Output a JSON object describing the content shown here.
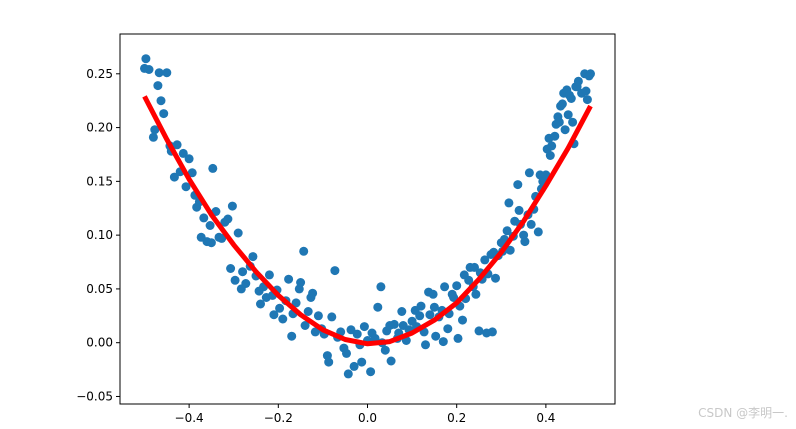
{
  "watermark": "CSDN @李明一.",
  "chart_data": {
    "type": "scatter",
    "title": "",
    "xlabel": "",
    "ylabel": "",
    "xlim": [
      -0.555,
      0.555
    ],
    "ylim": [
      -0.057,
      0.287
    ],
    "grid": false,
    "x_ticks": [
      -0.4,
      -0.2,
      0.0,
      0.2,
      0.4
    ],
    "x_tick_labels": [
      "−0.4",
      "−0.2",
      "0.0",
      "0.2",
      "0.4"
    ],
    "y_ticks": [
      -0.05,
      0.0,
      0.05,
      0.1,
      0.15,
      0.2,
      0.25
    ],
    "y_tick_labels": [
      "−0.05",
      "0.00",
      "0.05",
      "0.10",
      "0.15",
      "0.20",
      "0.25"
    ],
    "colors": {
      "scatter": "#1f77b4",
      "fit": "#ff0000"
    },
    "series": [
      {
        "kind": "scatter",
        "points": [
          [
            -0.5,
            0.255
          ],
          [
            -0.497,
            0.264
          ],
          [
            -0.49,
            0.254
          ],
          [
            -0.48,
            0.191
          ],
          [
            -0.477,
            0.198
          ],
          [
            -0.47,
            0.239
          ],
          [
            -0.467,
            0.251
          ],
          [
            -0.463,
            0.225
          ],
          [
            -0.457,
            0.213
          ],
          [
            -0.45,
            0.251
          ],
          [
            -0.443,
            0.183
          ],
          [
            -0.44,
            0.178
          ],
          [
            -0.433,
            0.154
          ],
          [
            -0.427,
            0.184
          ],
          [
            -0.42,
            0.159
          ],
          [
            -0.413,
            0.176
          ],
          [
            -0.407,
            0.145
          ],
          [
            -0.4,
            0.171
          ],
          [
            -0.393,
            0.158
          ],
          [
            -0.387,
            0.137
          ],
          [
            -0.383,
            0.126
          ],
          [
            -0.377,
            0.131
          ],
          [
            -0.373,
            0.098
          ],
          [
            -0.367,
            0.116
          ],
          [
            -0.36,
            0.094
          ],
          [
            -0.353,
            0.109
          ],
          [
            -0.35,
            0.093
          ],
          [
            -0.347,
            0.162
          ],
          [
            -0.34,
            0.122
          ],
          [
            -0.333,
            0.098
          ],
          [
            -0.327,
            0.097
          ],
          [
            -0.32,
            0.112
          ],
          [
            -0.313,
            0.115
          ],
          [
            -0.307,
            0.069
          ],
          [
            -0.303,
            0.127
          ],
          [
            -0.297,
            0.058
          ],
          [
            -0.29,
            0.102
          ],
          [
            -0.283,
            0.05
          ],
          [
            -0.28,
            0.066
          ],
          [
            -0.273,
            0.055
          ],
          [
            -0.263,
            0.071
          ],
          [
            -0.257,
            0.08
          ],
          [
            -0.25,
            0.062
          ],
          [
            -0.243,
            0.048
          ],
          [
            -0.24,
            0.036
          ],
          [
            -0.233,
            0.052
          ],
          [
            -0.227,
            0.042
          ],
          [
            -0.22,
            0.063
          ],
          [
            -0.213,
            0.044
          ],
          [
            -0.21,
            0.026
          ],
          [
            -0.203,
            0.049
          ],
          [
            -0.197,
            0.032
          ],
          [
            -0.19,
            0.022
          ],
          [
            -0.183,
            0.039
          ],
          [
            -0.177,
            0.059
          ],
          [
            -0.17,
            0.006
          ],
          [
            -0.167,
            0.027
          ],
          [
            -0.16,
            0.037
          ],
          [
            -0.153,
            0.05
          ],
          [
            -0.15,
            0.056
          ],
          [
            -0.143,
            0.085
          ],
          [
            -0.14,
            0.016
          ],
          [
            -0.133,
            0.029
          ],
          [
            -0.127,
            0.042
          ],
          [
            -0.123,
            0.046
          ],
          [
            -0.117,
            0.01
          ],
          [
            -0.11,
            0.025
          ],
          [
            -0.103,
            0.013
          ],
          [
            -0.097,
            0.008
          ],
          [
            -0.09,
            -0.012
          ],
          [
            -0.087,
            -0.018
          ],
          [
            -0.08,
            0.024
          ],
          [
            -0.073,
            0.067
          ],
          [
            -0.067,
            0.005
          ],
          [
            -0.06,
            0.01
          ],
          [
            -0.053,
            -0.005
          ],
          [
            -0.047,
            -0.01
          ],
          [
            -0.043,
            -0.029
          ],
          [
            -0.037,
            0.012
          ],
          [
            -0.03,
            -0.022
          ],
          [
            -0.023,
            0.008
          ],
          [
            -0.017,
            -0.002
          ],
          [
            -0.013,
            -0.018
          ],
          [
            -0.007,
            0.015
          ],
          [
            0.0,
            0.002
          ],
          [
            0.007,
            -0.027
          ],
          [
            0.01,
            0.009
          ],
          [
            0.017,
            0.004
          ],
          [
            0.023,
            0.033
          ],
          [
            0.03,
            0.052
          ],
          [
            0.033,
            0.0
          ],
          [
            0.04,
            -0.007
          ],
          [
            0.043,
            0.011
          ],
          [
            0.05,
            0.016
          ],
          [
            0.053,
            -0.017
          ],
          [
            0.06,
            0.017
          ],
          [
            0.067,
            0.004
          ],
          [
            0.07,
            0.009
          ],
          [
            0.077,
            0.029
          ],
          [
            0.08,
            0.016
          ],
          [
            0.087,
            0.002
          ],
          [
            0.093,
            0.012
          ],
          [
            0.1,
            0.02
          ],
          [
            0.107,
            0.03
          ],
          [
            0.11,
            0.015
          ],
          [
            0.117,
            0.025
          ],
          [
            0.12,
            0.034
          ],
          [
            0.127,
            0.01
          ],
          [
            0.13,
            -0.002
          ],
          [
            0.137,
            0.047
          ],
          [
            0.14,
            0.026
          ],
          [
            0.147,
            0.045
          ],
          [
            0.15,
            0.033
          ],
          [
            0.153,
            0.006
          ],
          [
            0.16,
            0.024
          ],
          [
            0.167,
            0.03
          ],
          [
            0.17,
            0.001
          ],
          [
            0.173,
            0.052
          ],
          [
            0.18,
            0.013
          ],
          [
            0.183,
            0.027
          ],
          [
            0.19,
            0.045
          ],
          [
            0.193,
            0.042
          ],
          [
            0.2,
            0.053
          ],
          [
            0.203,
            0.004
          ],
          [
            0.207,
            0.034
          ],
          [
            0.213,
            0.021
          ],
          [
            0.217,
            0.063
          ],
          [
            0.22,
            0.041
          ],
          [
            0.227,
            0.058
          ],
          [
            0.23,
            0.07
          ],
          [
            0.237,
            0.052
          ],
          [
            0.24,
            0.07
          ],
          [
            0.243,
            0.045
          ],
          [
            0.25,
            0.011
          ],
          [
            0.253,
            0.065
          ],
          [
            0.257,
            0.059
          ],
          [
            0.263,
            0.077
          ],
          [
            0.267,
            0.009
          ],
          [
            0.27,
            0.064
          ],
          [
            0.277,
            0.082
          ],
          [
            0.28,
            0.01
          ],
          [
            0.283,
            0.084
          ],
          [
            0.287,
            0.06
          ],
          [
            0.293,
            0.081
          ],
          [
            0.3,
            0.093
          ],
          [
            0.303,
            0.085
          ],
          [
            0.307,
            0.096
          ],
          [
            0.313,
            0.104
          ],
          [
            0.317,
            0.13
          ],
          [
            0.32,
            0.086
          ],
          [
            0.327,
            0.099
          ],
          [
            0.33,
            0.113
          ],
          [
            0.337,
            0.147
          ],
          [
            0.34,
            0.123
          ],
          [
            0.343,
            0.11
          ],
          [
            0.35,
            0.1
          ],
          [
            0.353,
            0.094
          ],
          [
            0.36,
            0.119
          ],
          [
            0.363,
            0.158
          ],
          [
            0.367,
            0.11
          ],
          [
            0.373,
            0.124
          ],
          [
            0.377,
            0.136
          ],
          [
            0.383,
            0.103
          ],
          [
            0.387,
            0.156
          ],
          [
            0.39,
            0.143
          ],
          [
            0.393,
            0.15
          ],
          [
            0.397,
            0.149
          ],
          [
            0.4,
            0.156
          ],
          [
            0.403,
            0.18
          ],
          [
            0.407,
            0.19
          ],
          [
            0.41,
            0.174
          ],
          [
            0.413,
            0.183
          ],
          [
            0.42,
            0.192
          ],
          [
            0.423,
            0.203
          ],
          [
            0.427,
            0.21
          ],
          [
            0.43,
            0.205
          ],
          [
            0.433,
            0.22
          ],
          [
            0.437,
            0.222
          ],
          [
            0.44,
            0.232
          ],
          [
            0.443,
            0.198
          ],
          [
            0.447,
            0.235
          ],
          [
            0.45,
            0.212
          ],
          [
            0.453,
            0.23
          ],
          [
            0.457,
            0.227
          ],
          [
            0.46,
            0.205
          ],
          [
            0.463,
            0.185
          ],
          [
            0.467,
            0.238
          ],
          [
            0.47,
            0.238
          ],
          [
            0.473,
            0.243
          ],
          [
            0.48,
            0.232
          ],
          [
            0.487,
            0.25
          ],
          [
            0.49,
            0.234
          ],
          [
            0.493,
            0.226
          ],
          [
            0.497,
            0.248
          ],
          [
            0.5,
            0.25
          ]
        ]
      },
      {
        "kind": "line",
        "x": [
          -0.5,
          -0.45,
          -0.4,
          -0.35,
          -0.3,
          -0.25,
          -0.2,
          -0.15,
          -0.1,
          -0.05,
          0.0,
          0.05,
          0.1,
          0.15,
          0.2,
          0.25,
          0.3,
          0.35,
          0.4,
          0.45,
          0.5
        ],
        "y": [
          0.229,
          0.189,
          0.152,
          0.119,
          0.091,
          0.066,
          0.044,
          0.026,
          0.012,
          0.003,
          -0.001,
          0.001,
          0.009,
          0.021,
          0.037,
          0.059,
          0.084,
          0.113,
          0.146,
          0.181,
          0.22
        ]
      }
    ]
  }
}
